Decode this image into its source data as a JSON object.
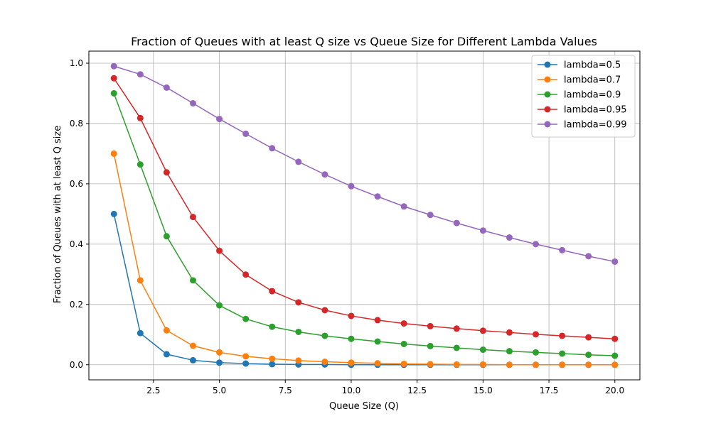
{
  "chart_data": {
    "type": "line",
    "title": "Fraction of Queues with at least Q size vs Queue Size for Different Lambda Values",
    "xlabel": "Queue Size (Q)",
    "ylabel": "Fraction of Queues with at least Q size",
    "xlim": [
      0.05,
      20.95
    ],
    "ylim": [
      -0.05,
      1.04
    ],
    "xticks": [
      2.5,
      5.0,
      7.5,
      10.0,
      12.5,
      15.0,
      17.5,
      20.0
    ],
    "xtick_labels": [
      "2.5",
      "5.0",
      "7.5",
      "10.0",
      "12.5",
      "15.0",
      "17.5",
      "20.0"
    ],
    "yticks": [
      0.0,
      0.2,
      0.4,
      0.6,
      0.8,
      1.0
    ],
    "ytick_labels": [
      "0.0",
      "0.2",
      "0.4",
      "0.6",
      "0.8",
      "1.0"
    ],
    "grid": true,
    "legend_position": "top-right",
    "x": [
      1,
      2,
      3,
      4,
      5,
      6,
      7,
      8,
      9,
      10,
      11,
      12,
      13,
      14,
      15,
      16,
      17,
      18,
      19,
      20
    ],
    "series": [
      {
        "name": "lambda=0.5",
        "color": "#1f77b4",
        "values": [
          0.5,
          0.105,
          0.035,
          0.015,
          0.007,
          0.004,
          0.002,
          0.001,
          0.001,
          0.0,
          0.0,
          0.0,
          0.0,
          0.0,
          0.0,
          0.0,
          0.0,
          0.0,
          0.0,
          0.0
        ]
      },
      {
        "name": "lambda=0.7",
        "color": "#ff7f0e",
        "values": [
          0.7,
          0.28,
          0.114,
          0.063,
          0.041,
          0.028,
          0.02,
          0.014,
          0.01,
          0.007,
          0.005,
          0.003,
          0.002,
          0.001,
          0.001,
          0.0,
          0.0,
          0.0,
          0.0,
          0.0
        ]
      },
      {
        "name": "lambda=0.9",
        "color": "#2ca02c",
        "values": [
          0.9,
          0.664,
          0.426,
          0.28,
          0.197,
          0.152,
          0.126,
          0.109,
          0.096,
          0.086,
          0.077,
          0.069,
          0.062,
          0.056,
          0.05,
          0.045,
          0.041,
          0.037,
          0.033,
          0.03
        ]
      },
      {
        "name": "lambda=0.95",
        "color": "#d62728",
        "values": [
          0.95,
          0.818,
          0.638,
          0.49,
          0.378,
          0.299,
          0.244,
          0.207,
          0.181,
          0.162,
          0.148,
          0.137,
          0.128,
          0.12,
          0.113,
          0.107,
          0.101,
          0.096,
          0.091,
          0.086
        ]
      },
      {
        "name": "lambda=0.99",
        "color": "#9467bd",
        "values": [
          0.99,
          0.963,
          0.919,
          0.867,
          0.815,
          0.766,
          0.718,
          0.673,
          0.631,
          0.592,
          0.558,
          0.525,
          0.497,
          0.47,
          0.445,
          0.422,
          0.4,
          0.38,
          0.36,
          0.342
        ]
      }
    ]
  }
}
